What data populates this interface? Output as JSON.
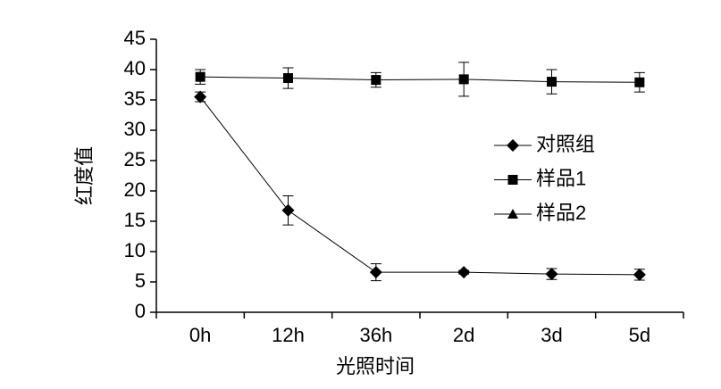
{
  "chart_data": {
    "type": "line",
    "x_label": "光照时间",
    "y_label": "红度值",
    "categories": [
      "0h",
      "12h",
      "36h",
      "2d",
      "3d",
      "5d"
    ],
    "series": [
      {
        "name": "对照组",
        "color": "#000000",
        "marker": "diamond",
        "values": [
          35.5,
          16.8,
          6.6,
          6.6,
          6.3,
          6.2
        ],
        "errors": [
          0.8,
          2.4,
          1.4,
          0.3,
          0.9,
          0.9
        ]
      },
      {
        "name": "样品1",
        "color": "#000000",
        "marker": "square",
        "values": [
          38.8,
          38.6,
          38.3,
          38.4,
          38.0,
          37.9
        ],
        "errors": [
          1.2,
          1.7,
          1.2,
          2.8,
          2.0,
          1.6
        ]
      },
      {
        "name": "样品2",
        "color": "#000000",
        "marker": "triangle",
        "values": [
          null,
          null,
          null,
          null,
          null,
          null
        ],
        "errors": [
          null,
          null,
          null,
          null,
          null,
          null
        ]
      }
    ],
    "ylim": [
      0,
      45
    ],
    "yticks": [
      0,
      5,
      10,
      15,
      20,
      25,
      30,
      35,
      40,
      45
    ],
    "grid": false
  }
}
